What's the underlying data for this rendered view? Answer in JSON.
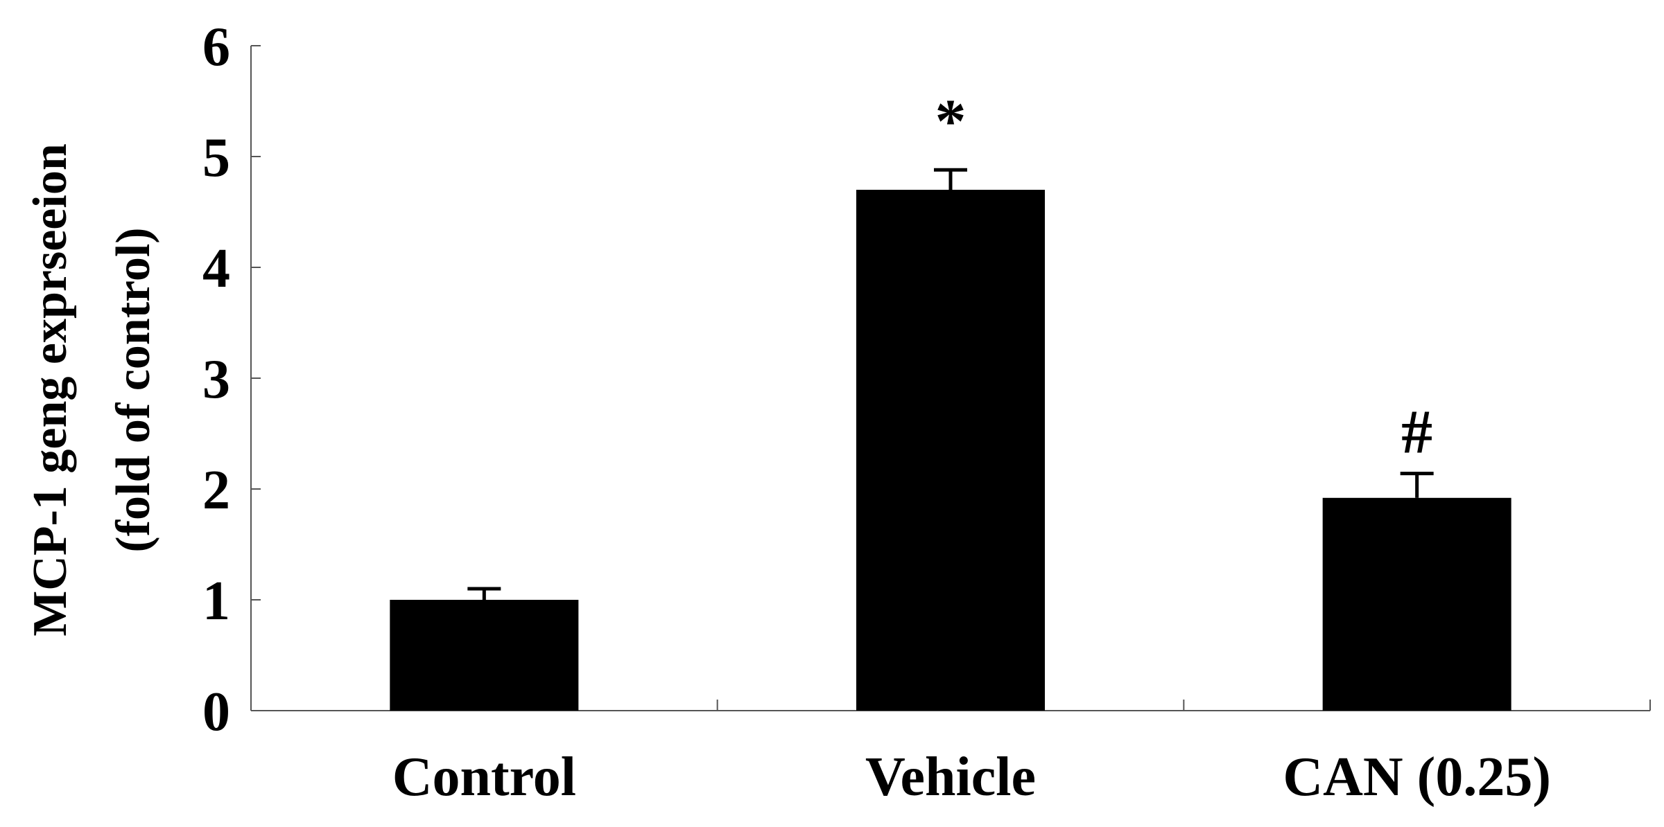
{
  "chart_data": {
    "type": "bar",
    "title": "",
    "xlabel": "",
    "ylabel": [
      "MCP-1 geng exprseeion",
      "(fold of control)"
    ],
    "ylim": [
      0,
      6
    ],
    "yticks": [
      0,
      1,
      2,
      3,
      4,
      5,
      6
    ],
    "categories": [
      "Control",
      "Vehicle",
      "CAN (0.25)"
    ],
    "values": [
      1.0,
      4.7,
      1.92
    ],
    "errors": [
      0.1,
      0.18,
      0.22
    ],
    "annotations": [
      "",
      "*",
      "#"
    ],
    "bar_color": "#000000",
    "grid": false,
    "legend": "none"
  }
}
